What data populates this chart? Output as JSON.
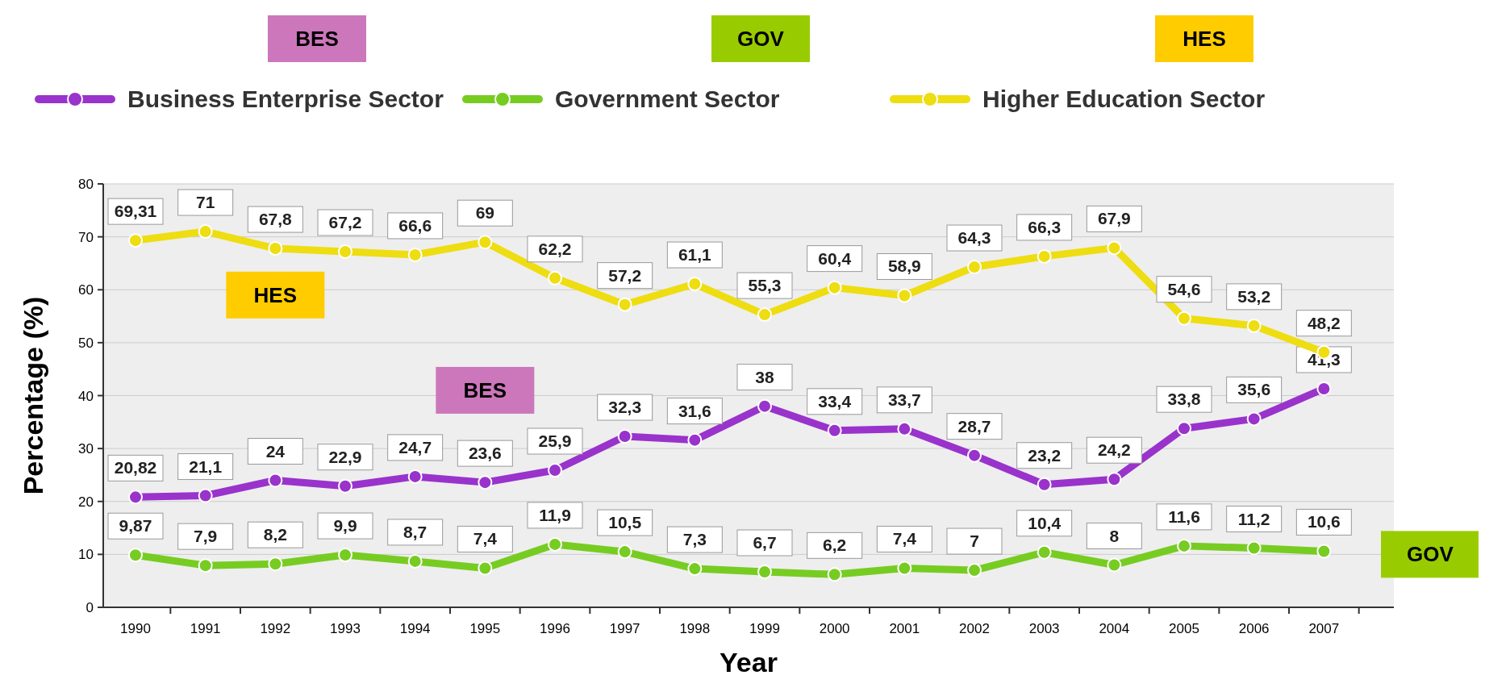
{
  "chart_data": {
    "type": "line",
    "xlabel": "Year",
    "ylabel": "Percentage (%)",
    "categories": [
      "1990",
      "1991",
      "1992",
      "1993",
      "1994",
      "1995",
      "1996",
      "1997",
      "1998",
      "1999",
      "2000",
      "2001",
      "2002",
      "2003",
      "2004",
      "2005",
      "2006",
      "2007"
    ],
    "series": [
      {
        "name": "Business Enterprise Sector",
        "color": "#9933cc",
        "values": [
          20.82,
          21.1,
          24,
          22.9,
          24.7,
          23.6,
          25.9,
          32.3,
          31.6,
          38,
          33.4,
          33.7,
          28.7,
          23.2,
          24.2,
          33.8,
          35.6,
          41.3
        ],
        "value_labels": [
          "20,82",
          "21,1",
          "24",
          "22,9",
          "24,7",
          "23,6",
          "25,9",
          "32,3",
          "31,6",
          "38",
          "33,4",
          "33,7",
          "28,7",
          "23,2",
          "24,2",
          "33,8",
          "35,6",
          "41,3"
        ]
      },
      {
        "name": "Government Sector",
        "color": "#77cc22",
        "values": [
          9.87,
          7.9,
          8.2,
          9.9,
          8.7,
          7.4,
          11.9,
          10.5,
          7.3,
          6.7,
          6.2,
          7.4,
          7,
          10.4,
          8,
          11.6,
          11.2,
          10.6
        ],
        "value_labels": [
          "9,87",
          "7,9",
          "8,2",
          "9,9",
          "8,7",
          "7,4",
          "11,9",
          "10,5",
          "7,3",
          "6,7",
          "6,2",
          "7,4",
          "7",
          "10,4",
          "8",
          "11,6",
          "11,2",
          "10,6"
        ]
      },
      {
        "name": "Higher Education Sector",
        "color": "#eedd11",
        "values": [
          69.31,
          71,
          67.8,
          67.2,
          66.6,
          69,
          62.2,
          57.2,
          61.1,
          55.3,
          60.4,
          58.9,
          64.3,
          66.3,
          67.9,
          54.6,
          53.2,
          48.2
        ],
        "value_labels": [
          "69,31",
          "71",
          "67,8",
          "67,2",
          "66,6",
          "69",
          "62,2",
          "57,2",
          "61,1",
          "55,3",
          "60,4",
          "58,9",
          "64,3",
          "66,3",
          "67,9",
          "54,6",
          "53,2",
          "48,2"
        ]
      }
    ],
    "ylim": [
      0,
      80
    ],
    "yticks": [
      0,
      10,
      20,
      30,
      40,
      50,
      60,
      70,
      80
    ],
    "grid": "y",
    "legend": "top",
    "marker": "circle",
    "line_style": "solid",
    "annotations": [
      "BES",
      "GOV",
      "HES",
      "HES",
      "BES",
      "GOV"
    ]
  }
}
